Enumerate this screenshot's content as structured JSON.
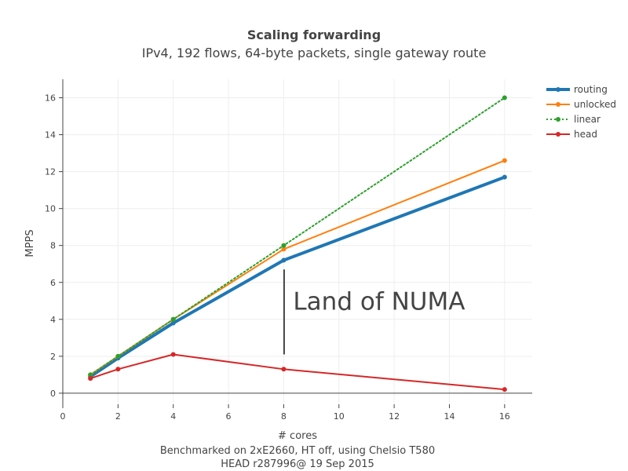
{
  "chart_data": {
    "type": "line",
    "title": "Scaling forwarding",
    "subtitle": "IPv4, 192 flows, 64-byte packets, single gateway route",
    "xlabel_lines": [
      "# cores",
      "Benchmarked on 2xE2660, HT off, using Chelsio T580",
      "HEAD r287996@ 19 Sep 2015"
    ],
    "ylabel": "MPPS",
    "xlim": [
      0,
      17
    ],
    "ylim": [
      -0.6,
      17
    ],
    "x_ticks": [
      0,
      2,
      4,
      6,
      8,
      10,
      12,
      14,
      16
    ],
    "y_ticks": [
      0,
      2,
      4,
      6,
      8,
      10,
      12,
      14,
      16
    ],
    "grid": true,
    "legend_position": "top-right",
    "series": [
      {
        "name": "routing",
        "color": "#1f77b4",
        "width": 4,
        "dash": "solid",
        "x": [
          1,
          2,
          4,
          8,
          16
        ],
        "y": [
          0.9,
          1.9,
          3.8,
          7.2,
          11.7
        ]
      },
      {
        "name": "unlocked",
        "color": "#ff7f0e",
        "width": 2,
        "dash": "solid",
        "x": [
          1,
          2,
          4,
          8,
          16
        ],
        "y": [
          1.0,
          2.0,
          4.0,
          7.8,
          12.6
        ]
      },
      {
        "name": "linear",
        "color": "#2ca02c",
        "width": 2,
        "dash": "dot",
        "x": [
          1,
          2,
          4,
          8,
          16
        ],
        "y": [
          1,
          2,
          4,
          8,
          16
        ]
      },
      {
        "name": "head",
        "color": "#d62728",
        "width": 2,
        "dash": "solid",
        "x": [
          1,
          2,
          4,
          8,
          16
        ],
        "y": [
          0.8,
          1.3,
          2.1,
          1.3,
          0.2
        ]
      }
    ],
    "annotation": {
      "text": "Land of NUMA",
      "x": 8,
      "y_from": 2.1,
      "y_to": 6.7
    }
  }
}
